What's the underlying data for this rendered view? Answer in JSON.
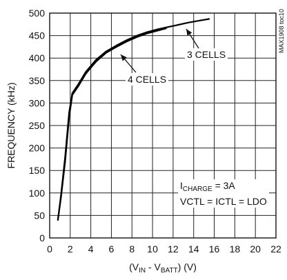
{
  "chart_data": {
    "type": "line",
    "xlabel": {
      "prefix": "(V",
      "sub1": "IN",
      "mid": " - V",
      "sub2": "BATT",
      "suffix": ") (V)"
    },
    "ylabel": "FREQUENCY (kHz)",
    "xlim": [
      0,
      22
    ],
    "ylim": [
      0,
      500
    ],
    "x_ticks": [
      0,
      2,
      4,
      6,
      8,
      10,
      12,
      14,
      16,
      18,
      20,
      22
    ],
    "y_ticks": [
      0,
      50,
      100,
      150,
      200,
      250,
      300,
      350,
      400,
      450,
      500
    ],
    "grid": true,
    "series": [
      {
        "name": "4 CELLS",
        "x": [
          0.8,
          1.1,
          1.5,
          1.9,
          2.2,
          2.8,
          3.5,
          4.5,
          5.5,
          6.5,
          7.5,
          8.5,
          9.5,
          10.5,
          11.3
        ],
        "y": [
          40,
          90,
          170,
          270,
          318,
          338,
          365,
          392,
          412,
          425,
          437,
          447,
          455,
          461,
          466
        ]
      },
      {
        "name": "3 CELLS",
        "x": [
          0.8,
          1.1,
          1.5,
          1.9,
          2.2,
          2.8,
          3.5,
          4.5,
          5.5,
          6.5,
          7.5,
          8.5,
          9.5,
          10.5,
          11.5,
          12.5,
          13.5,
          14.5,
          15.5
        ],
        "y": [
          40,
          95,
          180,
          280,
          322,
          342,
          369,
          396,
          415,
          428,
          440,
          450,
          458,
          464,
          469,
          474,
          479,
          483,
          487
        ]
      }
    ],
    "annotations": {
      "three_cells": "3 CELLS",
      "four_cells": "4 CELLS",
      "charge_prefix": "I",
      "charge_sub": "CHARGE",
      "charge_suffix": " = 3A",
      "vctl": "VCTL = ICTL = LDO"
    },
    "side_code": "MAX1908 toc10"
  }
}
